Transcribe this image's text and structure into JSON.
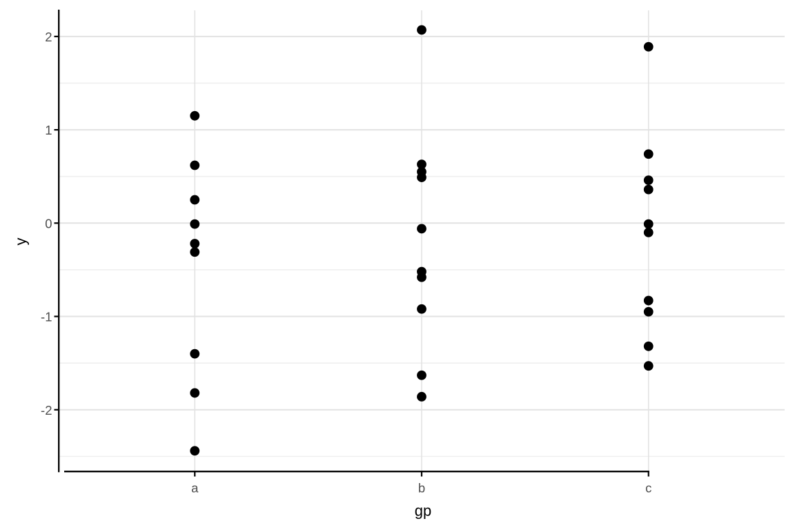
{
  "chart_data": {
    "type": "scatter",
    "subtype": "strip-plot",
    "title": "",
    "xlabel": "gp",
    "ylabel": "y",
    "categories": [
      "a",
      "b",
      "c"
    ],
    "series": [
      {
        "name": "a",
        "values": [
          1.15,
          0.62,
          0.25,
          -0.01,
          -0.22,
          -0.31,
          -1.4,
          -1.82,
          -2.44
        ]
      },
      {
        "name": "b",
        "values": [
          2.07,
          0.63,
          0.55,
          0.49,
          -0.06,
          -0.52,
          -0.58,
          -0.92,
          -1.63,
          -1.86
        ]
      },
      {
        "name": "c",
        "values": [
          1.89,
          0.74,
          0.46,
          0.36,
          -0.01,
          -0.1,
          -0.83,
          -0.95,
          -1.32,
          -1.53
        ]
      }
    ],
    "y_ticks": [
      2,
      1,
      0,
      -1,
      -2
    ],
    "y_tick_labels": [
      "2",
      "1",
      "0",
      "-1",
      "-2"
    ],
    "y_minor_ticks": [
      1.5,
      0.5,
      -0.5,
      -1.5,
      -2.5
    ],
    "ylim": [
      -2.66,
      2.28
    ],
    "grid": true,
    "legend": false,
    "point_color": "#000000",
    "point_radius": 6.9,
    "grid_major_color": "#e2e2e2",
    "grid_minor_color": "#efefef",
    "axis_line_color": "#000000",
    "tick_label_color": "#4d4d4d",
    "axis_title_color": "#000000",
    "background_color": "#ffffff"
  }
}
